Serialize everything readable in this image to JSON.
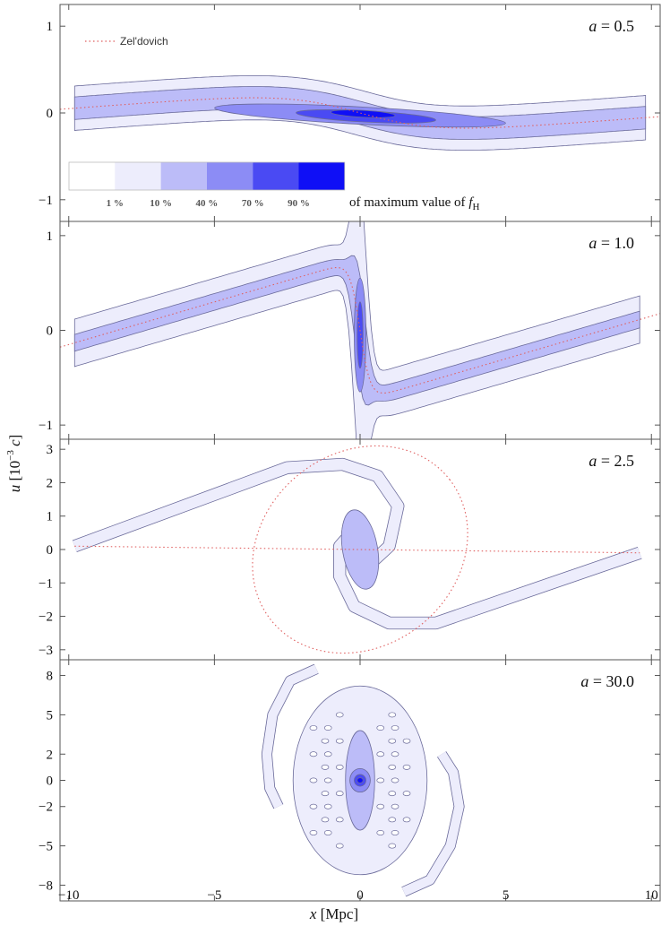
{
  "chart_data": {
    "type": "contour",
    "xlabel": "x [Mpc]",
    "ylabel": "u [10",
    "ylabel_exp": "−3",
    "ylabel_unit": " c]",
    "xlim": [
      -10.3,
      10.3
    ],
    "xticks": [
      -10,
      -5,
      0,
      5,
      10
    ],
    "xtick_labels": [
      "−10",
      "−5",
      "0",
      "5",
      "10"
    ],
    "legend": {
      "entry": "Zel'dovich",
      "placement": "top-left"
    },
    "colorbar": {
      "label_prefix": "of maximum value of ",
      "label_var": "f",
      "label_sub": "H",
      "levels": [
        {
          "label": "",
          "color": "#ffffff"
        },
        {
          "label": "1 %",
          "color": "#ededfc"
        },
        {
          "label": "10 %",
          "color": "#bcbcf8"
        },
        {
          "label": "40 %",
          "color": "#8c8cf5"
        },
        {
          "label": "70 %",
          "color": "#4a4af3"
        },
        {
          "label": "90 %",
          "color": "#0f0ff6"
        }
      ],
      "label_values": [
        "1 %",
        "10 %",
        "40 %",
        "70 %",
        "90 %"
      ]
    },
    "panels": [
      {
        "label": "a = 0.5",
        "label_var": "a",
        "label_val": "0.5",
        "ylim": [
          -1.25,
          1.25
        ],
        "yticks": [
          -1,
          0,
          1
        ],
        "ytick_labels": [
          "−1",
          "0",
          "1"
        ],
        "zeldovich": {
          "kind": "tanh",
          "amp": 0.3,
          "scale": 2.6,
          "slope": 0.025
        },
        "bands": [
          {
            "level": 1,
            "kind": "tanh",
            "amp": 0.3,
            "scale": 2.6,
            "slope": 0.025,
            "x0": -9.8,
            "x1": 9.8,
            "half_width": 0.255
          },
          {
            "level": 2,
            "kind": "tanh",
            "amp": 0.3,
            "scale": 2.6,
            "slope": 0.025,
            "x0": -9.8,
            "x1": 9.8,
            "half_width": 0.13
          }
        ],
        "blobs": [
          {
            "level": 3,
            "cx": 0,
            "cy": -0.03,
            "rx": 5.0,
            "ry": 0.1,
            "rot_deg": -3
          },
          {
            "level": 4,
            "cx": 0.2,
            "cy": -0.04,
            "rx": 2.4,
            "ry": 0.065,
            "rot_deg": -3
          },
          {
            "level": 5,
            "cx": 0.1,
            "cy": -0.01,
            "rx": 1.1,
            "ry": 0.04,
            "rot_deg": -3
          }
        ]
      },
      {
        "label": "a = 1.0",
        "label_var": "a",
        "label_val": "1.0",
        "ylim": [
          -1.15,
          1.15
        ],
        "yticks": [
          -1,
          0,
          1
        ],
        "ytick_labels": [
          "−1",
          "0",
          "1"
        ],
        "zeldovich": {
          "kind": "sshape",
          "amp": 0.75,
          "scale": 0.35,
          "slope": 0.09
        },
        "bands": [
          {
            "level": 1,
            "kind": "sshape",
            "amp": 0.75,
            "scale": 0.35,
            "slope": 0.09,
            "x0": -9.8,
            "x1": 9.6,
            "half_width": 0.24
          },
          {
            "level": 2,
            "kind": "sshape",
            "amp": 0.75,
            "scale": 0.35,
            "slope": 0.09,
            "x0": -9.8,
            "x1": 9.6,
            "half_width": 0.085
          }
        ],
        "blobs": [
          {
            "level": 3,
            "cx": 0.0,
            "cy": -0.05,
            "rx": 0.2,
            "ry": 0.6,
            "rot_deg": 0
          },
          {
            "level": 4,
            "cx": 0.0,
            "cy": -0.05,
            "rx": 0.1,
            "ry": 0.35,
            "rot_deg": 0
          }
        ]
      },
      {
        "label": "a = 2.5",
        "label_var": "a",
        "label_val": "2.5",
        "ylim": [
          -3.3,
          3.3
        ],
        "yticks": [
          -3,
          -2,
          -1,
          0,
          1,
          2,
          3
        ],
        "ytick_labels": [
          "−3",
          "−2",
          "−1",
          "0",
          "1",
          "2",
          "3"
        ],
        "zeldovich": {
          "kind": "ellipse",
          "cx": 0,
          "cy": 0,
          "rx": 3.9,
          "ry": 2.9
        },
        "bands": [
          {
            "level": 1,
            "kind": "spiral",
            "half_width": 0.17
          }
        ],
        "blobs": [
          {
            "level": 2,
            "cx": 0.0,
            "cy": 0.0,
            "rx": 0.6,
            "ry": 1.2,
            "rot_deg": 10
          }
        ]
      },
      {
        "label": "a = 30.0",
        "label_var": "a",
        "label_val": "30.0",
        "ylim": [
          -9.2,
          9.2
        ],
        "yticks": [
          -8,
          -5,
          -2,
          0,
          2,
          5,
          8
        ],
        "ytick_labels": [
          "−8",
          "−5",
          "−2",
          "0",
          "2",
          "5",
          "8"
        ],
        "bands": [
          {
            "level": 1,
            "kind": "galaxy"
          }
        ],
        "blobs": [
          {
            "level": 2,
            "cx": 0,
            "cy": 0,
            "rx": 0.5,
            "ry": 3.8,
            "rot_deg": 0
          },
          {
            "level": 3,
            "cx": 0,
            "cy": 0,
            "rx": 0.35,
            "ry": 0.9,
            "rot_deg": 0
          },
          {
            "level": 4,
            "cx": 0,
            "cy": 0,
            "rx": 0.2,
            "ry": 0.45,
            "rot_deg": 0
          },
          {
            "level": 5,
            "cx": 0,
            "cy": 0,
            "rx": 0.1,
            "ry": 0.2,
            "rot_deg": 0
          }
        ]
      }
    ]
  },
  "colors": {
    "frame": "#555555",
    "zeldovich": "#e06060",
    "contour_line": "#6a6a9a"
  }
}
